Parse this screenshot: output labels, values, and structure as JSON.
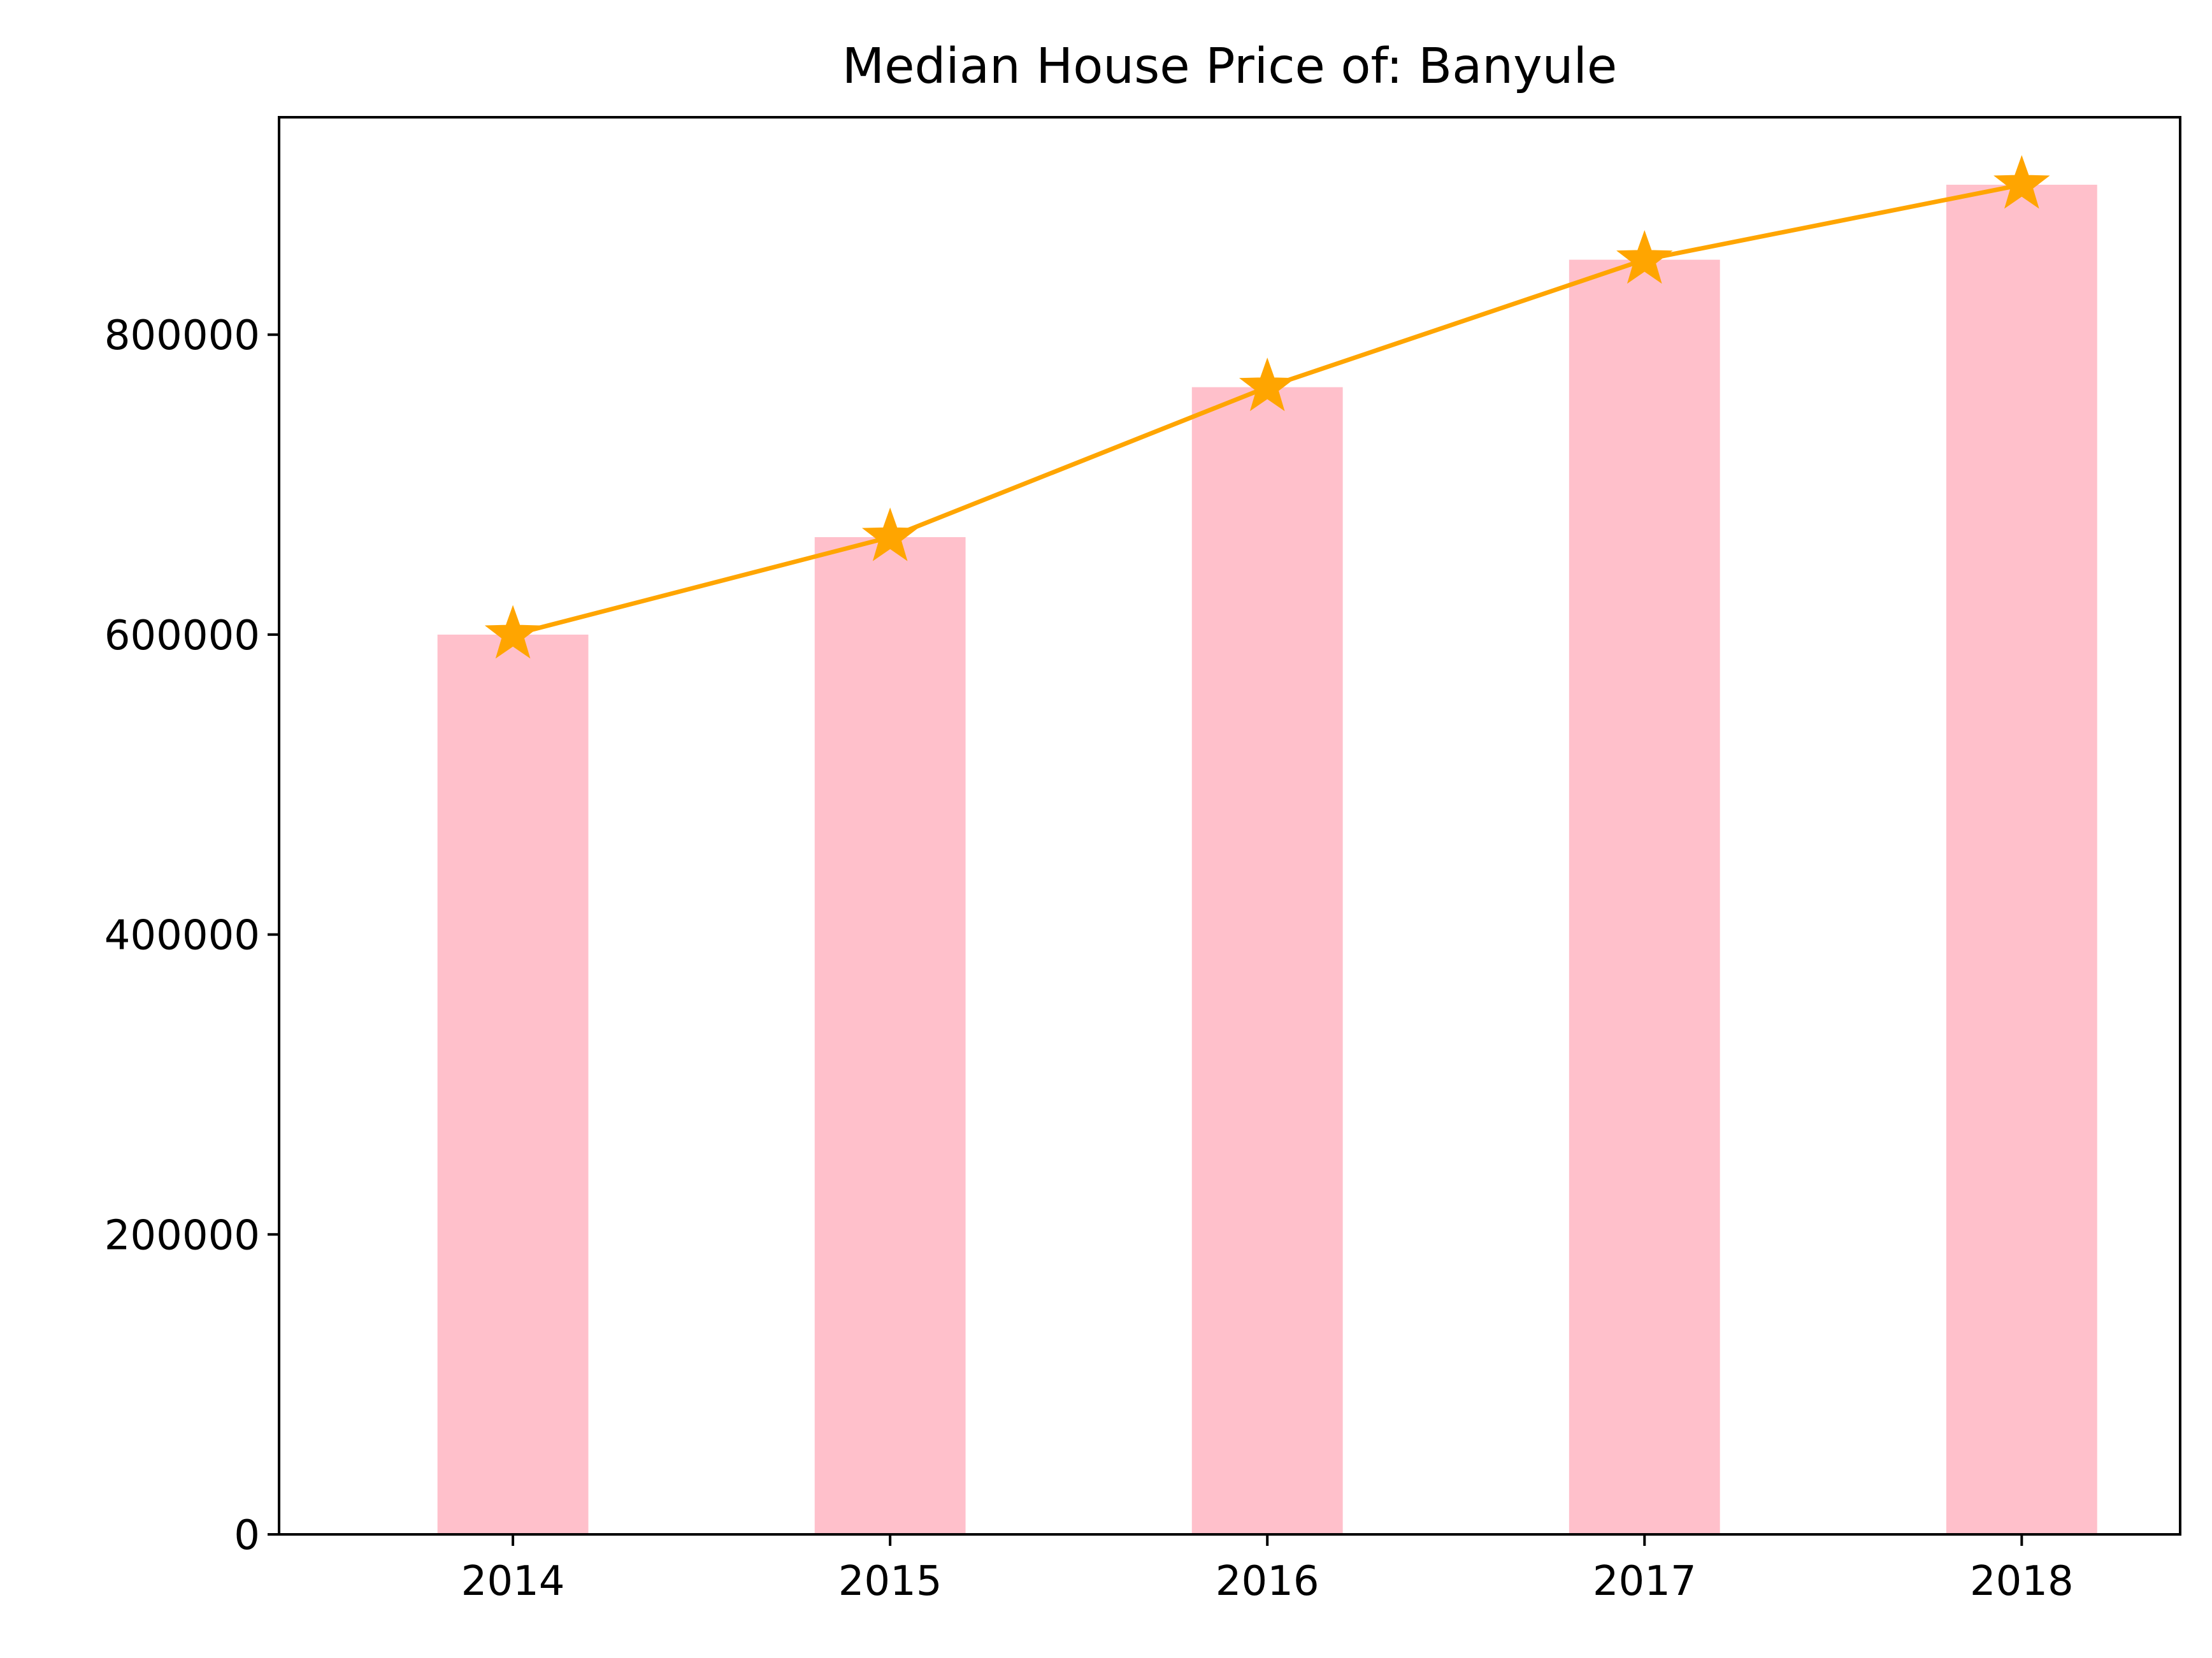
{
  "chart_data": {
    "type": "bar",
    "title": "Median House Price of: Banyule",
    "xlabel": "",
    "ylabel": "",
    "categories": [
      "2014",
      "2015",
      "2016",
      "2017",
      "2018"
    ],
    "values": [
      600000,
      665000,
      765000,
      850000,
      900000
    ],
    "line": {
      "values": [
        600000,
        665000,
        765000,
        850000,
        900000
      ],
      "marker": "star",
      "color": "#FFA500"
    },
    "bar_color": "#FFC0CB",
    "ylim": [
      0,
      945000
    ],
    "yticks": [
      0,
      200000,
      400000,
      600000,
      800000
    ],
    "ytick_labels": [
      "0",
      "200000",
      "400000",
      "600000",
      "800000"
    ],
    "grid": false,
    "legend": "none"
  }
}
